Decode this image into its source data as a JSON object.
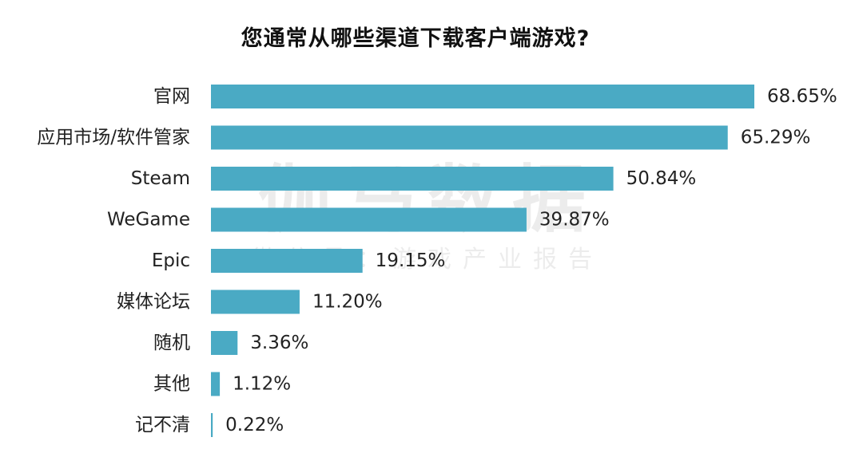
{
  "watermark": {
    "main": "伽马数据",
    "sub": "微信号：游戏产业报告"
  },
  "colors": {
    "bar": "#4aaac4",
    "label": "#222222"
  },
  "chart_data": {
    "type": "bar",
    "orientation": "horizontal",
    "title": "您通常从哪些渠道下载客户端游戏?",
    "categories": [
      "官网",
      "应用市场/软件管家",
      "Steam",
      "WeGame",
      "Epic",
      "媒体论坛",
      "随机",
      "其他",
      "记不清"
    ],
    "values": [
      68.65,
      65.29,
      50.84,
      39.87,
      19.15,
      11.2,
      3.36,
      1.12,
      0.22
    ],
    "value_labels": [
      "68.65%",
      "65.29%",
      "50.84%",
      "39.87%",
      "19.15%",
      "11.20%",
      "3.36%",
      "1.12%",
      "0.22%"
    ],
    "unit": "%",
    "xlim": [
      0,
      70
    ],
    "grid": false,
    "legend": "none"
  }
}
